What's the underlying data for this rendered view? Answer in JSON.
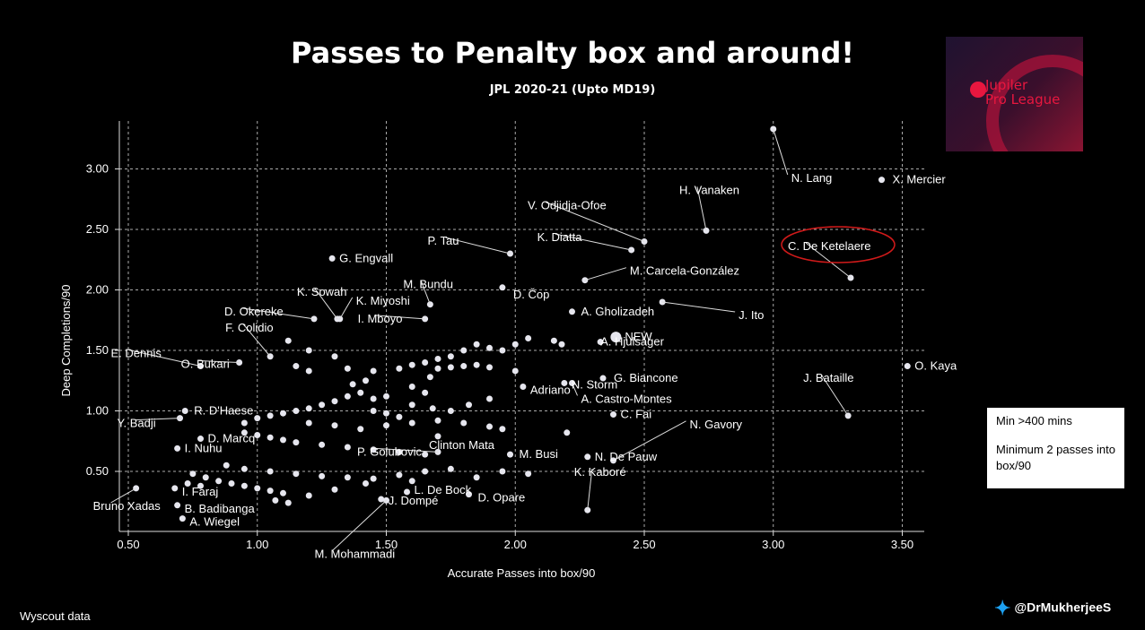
{
  "header": {
    "title": "Passes to Penalty box and around!",
    "subtitle": "JPL 2020-21 (Upto MD19)"
  },
  "logo": {
    "line1": "Jupiler",
    "line2": "Pro League"
  },
  "note": {
    "line1": "Min >400 mins",
    "line2": "Minimum 2 passes into box/90"
  },
  "footer": {
    "source": "Wyscout data",
    "handle": "@DrMukherjeeS"
  },
  "colors": {
    "background": "#000000",
    "points": "#e6e6ee",
    "highlight": "#d11a1a",
    "grid": "#aaaaaa"
  },
  "chart_data": {
    "type": "scatter",
    "title": "Passes to Penalty box and around!",
    "subtitle": "JPL 2020-21 (Upto MD19)",
    "xlabel": "Accurate Passes into box/90",
    "ylabel": "Deep Completions/90",
    "xlim": [
      0.45,
      3.6
    ],
    "ylim": [
      0.0,
      3.4
    ],
    "xticks": [
      "0.50",
      "1.00",
      "1.50",
      "2.00",
      "2.50",
      "3.00",
      "3.50"
    ],
    "yticks": [
      "0.50",
      "1.00",
      "1.50",
      "2.00",
      "2.50",
      "3.00"
    ],
    "grid": true,
    "highlighted": "C. De Ketelaere",
    "points": [
      {
        "name": "N. Lang",
        "x": 3.0,
        "y": 3.33
      },
      {
        "name": "X. Mercier",
        "x": 3.42,
        "y": 2.91
      },
      {
        "name": "H. Vanaken",
        "x": 2.74,
        "y": 2.49
      },
      {
        "name": "V. Odjidja-Ofoe",
        "x": 2.5,
        "y": 2.4
      },
      {
        "name": "K. Diatta",
        "x": 2.45,
        "y": 2.33
      },
      {
        "name": "C. De Ketelaere",
        "x": 3.3,
        "y": 2.1
      },
      {
        "name": "P. Tau",
        "x": 1.98,
        "y": 2.3
      },
      {
        "name": "M. Carcela-González",
        "x": 2.27,
        "y": 2.08
      },
      {
        "name": "G. Engvall",
        "x": 1.29,
        "y": 2.26
      },
      {
        "name": "J. Ito",
        "x": 2.57,
        "y": 1.9
      },
      {
        "name": "A. Gholizadeh",
        "x": 2.22,
        "y": 1.82
      },
      {
        "name": "D. Čop",
        "x": 1.95,
        "y": 2.02
      },
      {
        "name": "M. Bundu",
        "x": 1.67,
        "y": 1.88
      },
      {
        "name": "O. Kaya",
        "x": 3.52,
        "y": 1.37
      },
      {
        "name": "J. Bataille",
        "x": 3.29,
        "y": 0.96
      },
      {
        "name": "E. Dennis",
        "x": 0.78,
        "y": 1.37
      },
      {
        "name": "D. Okereke",
        "x": 1.22,
        "y": 1.76
      },
      {
        "name": "K. Sowah",
        "x": 1.31,
        "y": 1.76
      },
      {
        "name": "K. Miyoshi",
        "x": 1.32,
        "y": 1.76
      },
      {
        "name": "O. Bukari",
        "x": 0.93,
        "y": 1.4
      },
      {
        "name": "F. Colidio",
        "x": 1.05,
        "y": 1.45
      },
      {
        "name": "I. Mboyo",
        "x": 1.65,
        "y": 1.76
      },
      {
        "name": "NEW",
        "x": 2.39,
        "y": 1.61
      },
      {
        "name": "A. Hjulsager",
        "x": 2.33,
        "y": 1.57
      },
      {
        "name": "G. Biancone",
        "x": 2.34,
        "y": 1.27
      },
      {
        "name": "A. Castro-Montes",
        "x": 2.22,
        "y": 1.23
      },
      {
        "name": "N. Storm",
        "x": 2.19,
        "y": 1.23
      },
      {
        "name": "Adriano",
        "x": 2.03,
        "y": 1.2
      },
      {
        "name": "C. Fai",
        "x": 2.38,
        "y": 0.97
      },
      {
        "name": "N. Gavory",
        "x": 2.38,
        "y": 0.59
      },
      {
        "name": "N. De Pauw",
        "x": 2.28,
        "y": 0.62
      },
      {
        "name": "K. Kaboré",
        "x": 2.28,
        "y": 0.18
      },
      {
        "name": "R. D'Haese",
        "x": 0.72,
        "y": 1.0
      },
      {
        "name": "Y. Badji",
        "x": 0.7,
        "y": 0.94
      },
      {
        "name": "D. Marcq",
        "x": 0.78,
        "y": 0.77
      },
      {
        "name": "I. Nuhu",
        "x": 0.69,
        "y": 0.69
      },
      {
        "name": "I. Faraj",
        "x": 0.68,
        "y": 0.36
      },
      {
        "name": "Bruno Xadas",
        "x": 0.53,
        "y": 0.36
      },
      {
        "name": "B. Badibanga",
        "x": 0.69,
        "y": 0.22
      },
      {
        "name": "A. Wiegel",
        "x": 0.71,
        "y": 0.11
      },
      {
        "name": "M. Mohammadi",
        "x": 1.5,
        "y": 0.26
      },
      {
        "name": "D. Opare",
        "x": 1.82,
        "y": 0.31
      },
      {
        "name": "J. Dompé",
        "x": 1.48,
        "y": 0.27
      },
      {
        "name": "L. De Bock",
        "x": 1.58,
        "y": 0.33
      },
      {
        "name": "Clinton Mata",
        "x": 1.7,
        "y": 0.79
      },
      {
        "name": "P. Golubovic",
        "x": 1.7,
        "y": 0.66
      },
      {
        "name": "M. Busi",
        "x": 1.98,
        "y": 0.64
      }
    ],
    "cluster": [
      [
        1.12,
        1.58
      ],
      [
        1.2,
        1.5
      ],
      [
        1.3,
        1.45
      ],
      [
        1.2,
        1.33
      ],
      [
        1.15,
        1.37
      ],
      [
        1.35,
        1.35
      ],
      [
        1.45,
        1.33
      ],
      [
        1.55,
        1.35
      ],
      [
        1.6,
        1.38
      ],
      [
        1.65,
        1.4
      ],
      [
        1.7,
        1.43
      ],
      [
        1.75,
        1.45
      ],
      [
        1.8,
        1.5
      ],
      [
        1.85,
        1.55
      ],
      [
        1.9,
        1.52
      ],
      [
        1.95,
        1.5
      ],
      [
        2.0,
        1.55
      ],
      [
        2.05,
        1.6
      ],
      [
        2.15,
        1.58
      ],
      [
        2.18,
        1.55
      ],
      [
        1.7,
        1.35
      ],
      [
        1.75,
        1.36
      ],
      [
        1.8,
        1.37
      ],
      [
        1.85,
        1.38
      ],
      [
        1.9,
        1.36
      ],
      [
        2.0,
        1.33
      ],
      [
        1.6,
        1.2
      ],
      [
        1.65,
        1.15
      ],
      [
        1.5,
        1.12
      ],
      [
        1.45,
        1.1
      ],
      [
        1.4,
        1.15
      ],
      [
        1.35,
        1.12
      ],
      [
        1.3,
        1.08
      ],
      [
        1.25,
        1.05
      ],
      [
        1.2,
        1.02
      ],
      [
        1.15,
        1.0
      ],
      [
        1.1,
        0.98
      ],
      [
        1.05,
        0.96
      ],
      [
        1.0,
        0.94
      ],
      [
        0.95,
        0.9
      ],
      [
        1.2,
        0.9
      ],
      [
        1.3,
        0.88
      ],
      [
        1.4,
        0.85
      ],
      [
        1.5,
        0.88
      ],
      [
        1.6,
        0.9
      ],
      [
        1.7,
        0.92
      ],
      [
        1.8,
        0.9
      ],
      [
        1.9,
        0.87
      ],
      [
        1.95,
        0.85
      ],
      [
        2.2,
        0.82
      ],
      [
        0.95,
        0.82
      ],
      [
        1.0,
        0.8
      ],
      [
        1.05,
        0.78
      ],
      [
        1.1,
        0.76
      ],
      [
        1.15,
        0.74
      ],
      [
        1.25,
        0.72
      ],
      [
        1.35,
        0.7
      ],
      [
        1.45,
        0.68
      ],
      [
        1.55,
        0.66
      ],
      [
        1.65,
        0.64
      ],
      [
        0.88,
        0.55
      ],
      [
        0.95,
        0.52
      ],
      [
        1.05,
        0.5
      ],
      [
        1.15,
        0.48
      ],
      [
        1.25,
        0.46
      ],
      [
        1.35,
        0.45
      ],
      [
        1.45,
        0.44
      ],
      [
        1.55,
        0.47
      ],
      [
        1.65,
        0.5
      ],
      [
        1.75,
        0.52
      ],
      [
        0.75,
        0.48
      ],
      [
        0.8,
        0.45
      ],
      [
        0.85,
        0.42
      ],
      [
        0.9,
        0.4
      ],
      [
        0.95,
        0.38
      ],
      [
        1.0,
        0.36
      ],
      [
        1.05,
        0.34
      ],
      [
        1.1,
        0.32
      ],
      [
        0.73,
        0.4
      ],
      [
        0.78,
        0.38
      ],
      [
        1.07,
        0.26
      ],
      [
        1.12,
        0.24
      ],
      [
        1.2,
        0.3
      ],
      [
        1.3,
        0.35
      ],
      [
        1.42,
        0.4
      ],
      [
        1.6,
        0.42
      ],
      [
        1.85,
        0.45
      ],
      [
        1.95,
        0.5
      ],
      [
        2.05,
        0.48
      ],
      [
        1.6,
        1.05
      ],
      [
        1.68,
        1.02
      ],
      [
        1.75,
        1.0
      ],
      [
        1.82,
        1.05
      ],
      [
        1.9,
        1.1
      ],
      [
        1.5,
        0.98
      ],
      [
        1.55,
        0.95
      ],
      [
        1.45,
        1.0
      ],
      [
        1.37,
        1.22
      ],
      [
        1.42,
        1.25
      ],
      [
        1.67,
        1.28
      ]
    ]
  }
}
